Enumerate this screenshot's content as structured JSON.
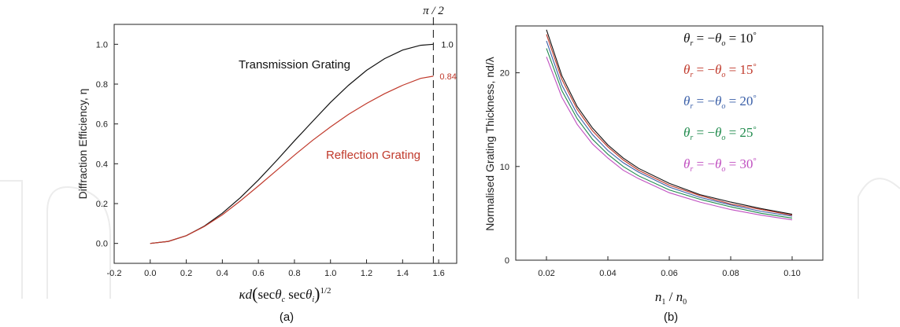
{
  "chart_data": [
    {
      "panel": "(a)",
      "type": "line",
      "xlabel": "κd(secθ_c secθ_i)^1/2",
      "ylabel": "Diffraction Efficiency, η",
      "xlim": [
        -0.2,
        1.7
      ],
      "ylim": [
        -0.1,
        1.1
      ],
      "xticks": [
        "-0.2",
        "0.0",
        "0.2",
        "0.4",
        "0.6",
        "0.8",
        "1.0",
        "1.2",
        "1.4",
        "1.6"
      ],
      "xtick_values": [
        -0.2,
        0.0,
        0.2,
        0.4,
        0.6,
        0.8,
        1.0,
        1.2,
        1.4,
        1.6
      ],
      "yticks": [
        "0.0",
        "0.2",
        "0.4",
        "0.6",
        "0.8",
        "1.0"
      ],
      "ytick_values": [
        0.0,
        0.2,
        0.4,
        0.6,
        0.8,
        1.0
      ],
      "vline": {
        "x": 1.5708,
        "label": "π / 2",
        "style": "dashed"
      },
      "series": [
        {
          "name": "Transmission Grating",
          "color": "#111111",
          "x": [
            0,
            0.1,
            0.2,
            0.3,
            0.4,
            0.5,
            0.6,
            0.7,
            0.8,
            0.9,
            1.0,
            1.1,
            1.2,
            1.3,
            1.4,
            1.5,
            1.5708
          ],
          "y": [
            0,
            0.01,
            0.039,
            0.087,
            0.152,
            0.23,
            0.319,
            0.415,
            0.515,
            0.612,
            0.708,
            0.794,
            0.869,
            0.928,
            0.971,
            0.995,
            1.0
          ],
          "end_label": "1.0"
        },
        {
          "name": "Reflection Grating",
          "color": "#c0392b",
          "x": [
            0,
            0.1,
            0.2,
            0.3,
            0.4,
            0.5,
            0.6,
            0.7,
            0.8,
            0.9,
            1.0,
            1.1,
            1.2,
            1.3,
            1.4,
            1.5,
            1.5708
          ],
          "y": [
            0,
            0.01,
            0.039,
            0.085,
            0.144,
            0.214,
            0.289,
            0.366,
            0.443,
            0.517,
            0.585,
            0.648,
            0.703,
            0.752,
            0.794,
            0.829,
            0.84
          ],
          "end_label": "0.84"
        }
      ]
    },
    {
      "panel": "(b)",
      "type": "line",
      "xlabel": "n₁ / n₀",
      "ylabel": "Normalised Grating Thickness, nd/λ",
      "xlim": [
        0.01,
        0.11
      ],
      "ylim": [
        0,
        25
      ],
      "xticks": [
        "0.02",
        "0.04",
        "0.06",
        "0.08",
        "0.10"
      ],
      "xtick_values": [
        0.02,
        0.04,
        0.06,
        0.08,
        0.1
      ],
      "yticks": [
        "0",
        "10",
        "20"
      ],
      "ytick_values": [
        0,
        10,
        20
      ],
      "legend_position": "top-right",
      "series": [
        {
          "name": "θr = −θo = 10°",
          "angle": "10",
          "color": "#111111",
          "x": [
            0.02,
            0.025,
            0.03,
            0.035,
            0.04,
            0.045,
            0.05,
            0.06,
            0.07,
            0.08,
            0.09,
            0.1
          ],
          "y": [
            24.6,
            19.7,
            16.4,
            14.1,
            12.3,
            10.9,
            9.8,
            8.2,
            7.0,
            6.2,
            5.5,
            4.9
          ]
        },
        {
          "name": "θr = −θo = 15°",
          "angle": "15",
          "color": "#c0392b",
          "x": [
            0.02,
            0.025,
            0.03,
            0.035,
            0.04,
            0.045,
            0.05,
            0.06,
            0.07,
            0.08,
            0.09,
            0.1
          ],
          "y": [
            24.1,
            19.3,
            16.1,
            13.8,
            12.1,
            10.7,
            9.6,
            8.0,
            6.9,
            6.0,
            5.4,
            4.8
          ]
        },
        {
          "name": "θr = −θo = 20°",
          "angle": "20",
          "color": "#3a5fa8",
          "x": [
            0.02,
            0.025,
            0.03,
            0.035,
            0.04,
            0.045,
            0.05,
            0.06,
            0.07,
            0.08,
            0.09,
            0.1
          ],
          "y": [
            23.4,
            18.7,
            15.6,
            13.4,
            11.7,
            10.4,
            9.4,
            7.8,
            6.7,
            5.9,
            5.2,
            4.7
          ]
        },
        {
          "name": "θr = −θo = 25°",
          "angle": "25",
          "color": "#1f8a4c",
          "x": [
            0.02,
            0.025,
            0.03,
            0.035,
            0.04,
            0.045,
            0.05,
            0.06,
            0.07,
            0.08,
            0.09,
            0.1
          ],
          "y": [
            22.6,
            18.1,
            15.1,
            12.9,
            11.3,
            10.0,
            9.0,
            7.5,
            6.5,
            5.7,
            5.0,
            4.5
          ]
        },
        {
          "name": "θr = −θo = 30°",
          "angle": "30",
          "color": "#c04fc0",
          "x": [
            0.02,
            0.025,
            0.03,
            0.035,
            0.04,
            0.045,
            0.05,
            0.06,
            0.07,
            0.08,
            0.09,
            0.1
          ],
          "y": [
            21.7,
            17.4,
            14.5,
            12.4,
            10.9,
            9.6,
            8.7,
            7.2,
            6.2,
            5.4,
            4.8,
            4.3
          ]
        }
      ]
    }
  ]
}
